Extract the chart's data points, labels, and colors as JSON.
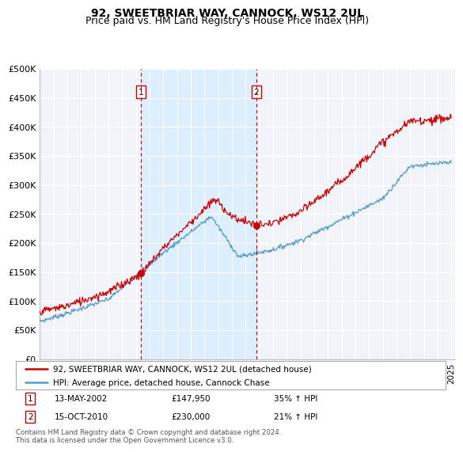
{
  "title": "92, SWEETBRIAR WAY, CANNOCK, WS12 2UL",
  "subtitle": "Price paid vs. HM Land Registry's House Price Index (HPI)",
  "ylabel_ticks": [
    "£0",
    "£50K",
    "£100K",
    "£150K",
    "£200K",
    "£250K",
    "£300K",
    "£350K",
    "£400K",
    "£450K",
    "£500K"
  ],
  "ytick_values": [
    0,
    50000,
    100000,
    150000,
    200000,
    250000,
    300000,
    350000,
    400000,
    450000,
    500000
  ],
  "ylim": [
    0,
    500000
  ],
  "xlim_start": 1995.0,
  "xlim_end": 2025.3,
  "hpi_color": "#5599cc",
  "price_color": "#cc0000",
  "annotation_color": "#cc0000",
  "shade_color": "#ddeeff",
  "marker1_x": 2002.37,
  "marker1_y": 147950,
  "marker2_x": 2010.79,
  "marker2_y": 230000,
  "vline1_x": 2002.37,
  "vline2_x": 2010.79,
  "legend_line1": "92, SWEETBRIAR WAY, CANNOCK, WS12 2UL (detached house)",
  "legend_line2": "HPI: Average price, detached house, Cannock Chase",
  "table_row1": [
    "1",
    "13-MAY-2002",
    "£147,950",
    "35% ↑ HPI"
  ],
  "table_row2": [
    "2",
    "15-OCT-2010",
    "£230,000",
    "21% ↑ HPI"
  ],
  "footer": "Contains HM Land Registry data © Crown copyright and database right 2024.\nThis data is licensed under the Open Government Licence v3.0.",
  "bg_color": "#ffffff",
  "plot_bg_color": "#f0f4f8",
  "grid_color": "#cccccc",
  "title_fontsize": 10,
  "subtitle_fontsize": 9,
  "tick_fontsize": 8
}
